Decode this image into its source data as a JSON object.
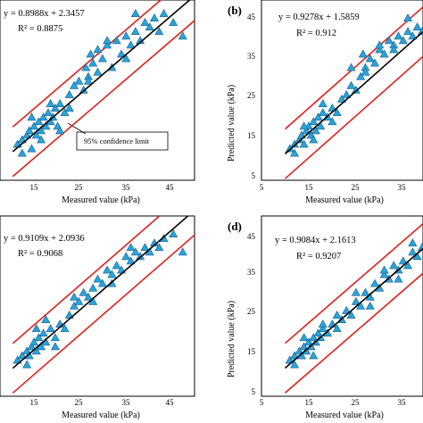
{
  "chart_data": [
    {
      "type": "scatter",
      "panel_label": "",
      "equation": "y = 0.8988x + 2.3457",
      "r_squared": "R² = 0.8875",
      "xlabel": "Measured value (kPa)",
      "ylabel": "",
      "xticks": [
        "15",
        "25",
        "35",
        "45"
      ],
      "yticks": [],
      "annotation": "95% confidence limit",
      "slope": 0.8988,
      "intercept": 2.3457,
      "band": 5.5,
      "series": [
        {
          "name": "",
          "x": [
            11,
            12,
            13,
            13.5,
            14,
            14.5,
            15,
            15.5,
            16,
            16.5,
            17,
            17.5,
            18,
            18.5,
            19,
            19.5,
            20,
            21,
            22,
            23,
            24,
            25,
            25.5,
            26,
            26.5,
            27,
            28,
            29,
            30,
            31,
            32,
            33,
            34,
            35,
            36,
            37,
            38,
            39,
            40,
            41,
            42,
            44,
            46,
            12,
            14,
            16,
            18,
            20,
            22,
            26,
            28,
            30,
            34,
            36
          ],
          "y": [
            13,
            14,
            15,
            16,
            12,
            17,
            15,
            18,
            16,
            19,
            17,
            20,
            18,
            19,
            21,
            17,
            22,
            20,
            24,
            26,
            27,
            25,
            30,
            28,
            33,
            31,
            34,
            32,
            35,
            30,
            36,
            33,
            37,
            35,
            38,
            36,
            40,
            39,
            41,
            38,
            42,
            40,
            37,
            11,
            19,
            14,
            22,
            16,
            21,
            27,
            29,
            36,
            32,
            42
          ]
        }
      ]
    },
    {
      "type": "scatter",
      "panel_label": "(b)",
      "equation": "y = 0.9278x + 1.5859",
      "r_squared": "R² = 0.912",
      "xlabel": "Measured value (kPa)",
      "ylabel": "Predicted value (kPa)",
      "xticks": [
        "5",
        "15",
        "25",
        "35"
      ],
      "yticks": [
        "5",
        "15",
        "25",
        "35",
        "45"
      ],
      "slope": 0.9278,
      "intercept": 1.5859,
      "band": 5.5,
      "series": [
        {
          "name": "",
          "x": [
            11,
            12,
            13,
            13.5,
            14,
            14.5,
            15,
            15.5,
            16,
            16.5,
            17,
            17.5,
            18,
            19,
            20,
            21,
            22,
            23,
            24,
            25,
            26,
            26.5,
            27,
            28,
            29,
            30,
            31,
            32,
            33,
            34,
            35,
            36,
            37,
            38,
            39,
            40,
            12,
            14,
            16,
            18,
            20,
            24,
            27,
            30,
            33,
            36
          ],
          "y": [
            12,
            13,
            14,
            15,
            13,
            16,
            17,
            15,
            18,
            16,
            19,
            17,
            20,
            19,
            21,
            20,
            23,
            24,
            26,
            25,
            28,
            33,
            30,
            32,
            31,
            34,
            33,
            36,
            35,
            37,
            36,
            38,
            37,
            39,
            38,
            40,
            11,
            17,
            14,
            22,
            18,
            30,
            29,
            35,
            34,
            41
          ]
        }
      ]
    },
    {
      "type": "scatter",
      "panel_label": "",
      "equation": "y = 0.9109x + 2.0936",
      "r_squared": "R² = 0.9068",
      "xlabel": "Measured value (kPa)",
      "ylabel": "",
      "xticks": [
        "15",
        "25",
        "35",
        "45"
      ],
      "yticks": [],
      "slope": 0.9109,
      "intercept": 2.0936,
      "band": 5.5,
      "series": [
        {
          "name": "",
          "x": [
            11,
            12,
            13,
            13.5,
            14,
            14.5,
            15,
            15.5,
            16,
            16.5,
            17,
            18,
            19,
            20,
            21,
            22,
            23,
            24,
            25,
            26,
            27,
            28,
            29,
            30,
            31,
            32,
            33,
            34,
            35,
            36,
            37,
            38,
            39,
            40,
            41,
            42,
            44,
            46,
            13,
            15,
            17,
            19,
            23,
            27,
            31,
            35
          ],
          "y": [
            13,
            14,
            15,
            14,
            16,
            17,
            15,
            18,
            16,
            19,
            17,
            20,
            18,
            21,
            20,
            23,
            25,
            26,
            28,
            27,
            29,
            31,
            30,
            33,
            32,
            34,
            33,
            36,
            35,
            37,
            36,
            38,
            37,
            39,
            38,
            40,
            41,
            37,
            12,
            20,
            22,
            16,
            27,
            26,
            30,
            38
          ]
        }
      ]
    },
    {
      "type": "scatter",
      "panel_label": "(d)",
      "equation": "y = 0.9084x + 2.1613",
      "r_squared": "R² = 0.9207",
      "xlabel": "Measured value (kPa)",
      "ylabel": "Predicted value (kPa)",
      "xticks": [
        "5",
        "15",
        "25",
        "35"
      ],
      "yticks": [
        "5",
        "15",
        "25",
        "35",
        "45"
      ],
      "slope": 0.9084,
      "intercept": 2.1613,
      "band": 5.5,
      "series": [
        {
          "name": "",
          "x": [
            11,
            12,
            13,
            13.5,
            14,
            14.5,
            15,
            15.5,
            16,
            16.5,
            17,
            17.5,
            18,
            19,
            20,
            21,
            22,
            23,
            24,
            25,
            26,
            27,
            28,
            29,
            30,
            31,
            32,
            33,
            34,
            35,
            36,
            37,
            38,
            39,
            40,
            12,
            14,
            16,
            18,
            21,
            25,
            28,
            31,
            34,
            37
          ],
          "y": [
            13,
            14,
            15,
            14,
            16,
            15,
            17,
            16,
            18,
            17,
            19,
            18,
            20,
            19,
            21,
            20,
            22,
            24,
            23,
            26,
            25,
            28,
            27,
            30,
            29,
            32,
            31,
            34,
            33,
            35,
            34,
            37,
            36,
            38,
            37,
            12,
            18,
            14,
            21,
            23,
            28,
            25,
            33,
            31,
            39
          ]
        }
      ]
    }
  ]
}
